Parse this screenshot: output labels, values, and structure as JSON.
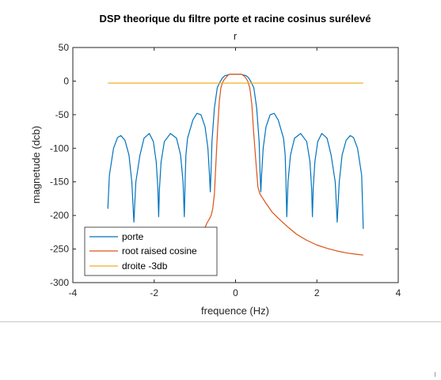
{
  "chart_data": {
    "type": "line",
    "title": "DSP theorique du filtre porte et racine cosinus surélevé",
    "subtitle": "r",
    "xlabel": "frequence (Hz)",
    "ylabel": "magnetude (dcb)",
    "xlim": [
      -4,
      4
    ],
    "ylim": [
      -300,
      50
    ],
    "xticks": [
      -4,
      -2,
      0,
      2,
      4
    ],
    "yticks": [
      50,
      0,
      -50,
      -100,
      -150,
      -200,
      -250,
      -300
    ],
    "grid": false,
    "legend_position": "bottom-left",
    "series": [
      {
        "name": "porte",
        "color": "#0072BD",
        "x": [
          -3.14,
          -3.1,
          -3.0,
          -2.9,
          -2.82,
          -2.72,
          -2.62,
          -2.55,
          -2.52,
          -2.5,
          -2.48,
          -2.45,
          -2.35,
          -2.25,
          -2.12,
          -2.02,
          -1.95,
          -1.91,
          -1.89,
          -1.87,
          -1.83,
          -1.75,
          -1.6,
          -1.45,
          -1.35,
          -1.29,
          -1.26,
          -1.24,
          -1.22,
          -1.18,
          -1.05,
          -0.95,
          -0.85,
          -0.75,
          -0.68,
          -0.64,
          -0.62,
          -0.6,
          -0.58,
          -0.52,
          -0.45,
          -0.38,
          -0.32,
          -0.26,
          -0.2,
          -0.15,
          -0.1,
          -0.05,
          0.0,
          0.05,
          0.1,
          0.15,
          0.2,
          0.26,
          0.32,
          0.38,
          0.45,
          0.52,
          0.58,
          0.6,
          0.62,
          0.64,
          0.68,
          0.75,
          0.85,
          0.95,
          1.05,
          1.18,
          1.22,
          1.24,
          1.26,
          1.29,
          1.35,
          1.45,
          1.6,
          1.75,
          1.83,
          1.87,
          1.89,
          1.91,
          1.95,
          2.02,
          2.12,
          2.25,
          2.35,
          2.45,
          2.48,
          2.5,
          2.52,
          2.55,
          2.62,
          2.72,
          2.82,
          2.9,
          3.0,
          3.1,
          3.14
        ],
        "y": [
          -190,
          -140,
          -100,
          -84,
          -81,
          -88,
          -110,
          -150,
          -185,
          -210,
          -185,
          -150,
          -110,
          -85,
          -78,
          -90,
          -120,
          -160,
          -202,
          -160,
          -120,
          -90,
          -78,
          -85,
          -110,
          -150,
          -202,
          -150,
          -110,
          -85,
          -58,
          -48,
          -50,
          -68,
          -100,
          -140,
          -165,
          -130,
          -90,
          -40,
          -10,
          -1,
          5,
          8,
          9,
          10,
          10,
          10,
          10,
          10,
          10,
          10,
          9,
          8,
          5,
          -1,
          -10,
          -40,
          -90,
          -130,
          -165,
          -140,
          -100,
          -68,
          -50,
          -48,
          -58,
          -85,
          -110,
          -150,
          -202,
          -150,
          -110,
          -85,
          -78,
          -90,
          -120,
          -160,
          -202,
          -160,
          -120,
          -90,
          -78,
          -85,
          -110,
          -150,
          -185,
          -210,
          -185,
          -150,
          -110,
          -88,
          -81,
          -84,
          -100,
          -140,
          -220
        ]
      },
      {
        "name": "root raised cosine",
        "color": "#D95319",
        "x": [
          -0.8,
          -0.7,
          -0.65,
          -0.6,
          -0.56,
          -0.52,
          -0.48,
          -0.44,
          -0.4,
          -0.36,
          -0.32,
          -0.28,
          -0.24,
          -0.2,
          -0.15,
          -0.1,
          -0.05,
          0.0,
          0.05,
          0.1,
          0.15,
          0.2,
          0.25,
          0.3,
          0.35,
          0.4,
          0.45,
          0.5,
          0.55,
          0.6,
          0.75,
          0.9,
          1.1,
          1.3,
          1.5,
          1.75,
          2.0,
          2.25,
          2.5,
          2.75,
          3.0,
          3.14
        ],
        "y": [
          -225,
          -211,
          -206,
          -200,
          -190,
          -168,
          -120,
          -70,
          -30,
          -10,
          -2,
          2,
          5,
          8,
          10,
          10,
          10,
          10,
          10,
          10,
          10,
          8,
          5,
          0,
          -10,
          -35,
          -80,
          -120,
          -158,
          -168,
          -182,
          -195,
          -207,
          -218,
          -228,
          -237,
          -244,
          -249,
          -253,
          -256,
          -258,
          -259
        ]
      },
      {
        "name": "droite -3db",
        "color": "#EDB120",
        "x": [
          -3.14,
          3.14
        ],
        "y": [
          -3,
          -3
        ]
      }
    ]
  }
}
